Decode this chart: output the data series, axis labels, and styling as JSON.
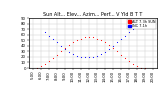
{
  "title": "Sun Alt... Elev... Azim... Perf... V Yld B T T",
  "legend1": "ALT 7.3h SUN",
  "legend2": "INC 7.1h",
  "legend1_color": "#ff0000",
  "legend2_color": "#0000ff",
  "bg_color": "#ffffff",
  "grid_color": "#c8c8c8",
  "ymin": 0,
  "ymax": 90,
  "ytick_labels": [
    "0",
    "10",
    "20",
    "30",
    "40",
    "50",
    "60",
    "70",
    "80",
    "90"
  ],
  "ytick_vals": [
    0,
    10,
    20,
    30,
    40,
    50,
    60,
    70,
    80,
    90
  ],
  "sun_altitude_x": [
    5.5,
    6.0,
    6.5,
    7.0,
    7.5,
    8.0,
    8.5,
    9.0,
    9.5,
    10.0,
    10.5,
    11.0,
    11.5,
    12.0,
    12.5,
    13.0,
    13.5,
    14.0,
    14.5,
    15.0,
    15.5,
    16.0,
    16.5,
    17.0,
    17.5,
    18.0,
    18.5,
    19.0
  ],
  "sun_altitude_y": [
    0,
    3,
    7,
    12,
    18,
    24,
    30,
    36,
    41,
    46,
    50,
    53,
    55,
    56,
    55,
    53,
    50,
    46,
    41,
    36,
    30,
    24,
    18,
    12,
    7,
    3,
    0,
    0
  ],
  "sun_incidence_x": [
    6.5,
    7.0,
    7.5,
    8.0,
    8.5,
    9.0,
    9.5,
    10.0,
    10.5,
    11.0,
    11.5,
    12.0,
    12.5,
    13.0,
    13.5,
    14.0,
    14.5,
    15.0,
    15.5,
    16.0,
    16.5,
    17.0,
    17.5,
    18.0
  ],
  "sun_incidence_y": [
    65,
    58,
    52,
    46,
    40,
    34,
    29,
    25,
    22,
    20,
    19,
    19,
    20,
    22,
    25,
    29,
    34,
    40,
    46,
    52,
    58,
    65,
    70,
    75
  ],
  "xmin": 4.5,
  "xmax": 20.5,
  "title_fontsize": 3.5,
  "axis_fontsize": 2.8,
  "legend_fontsize": 2.5,
  "dot_size": 0.8
}
